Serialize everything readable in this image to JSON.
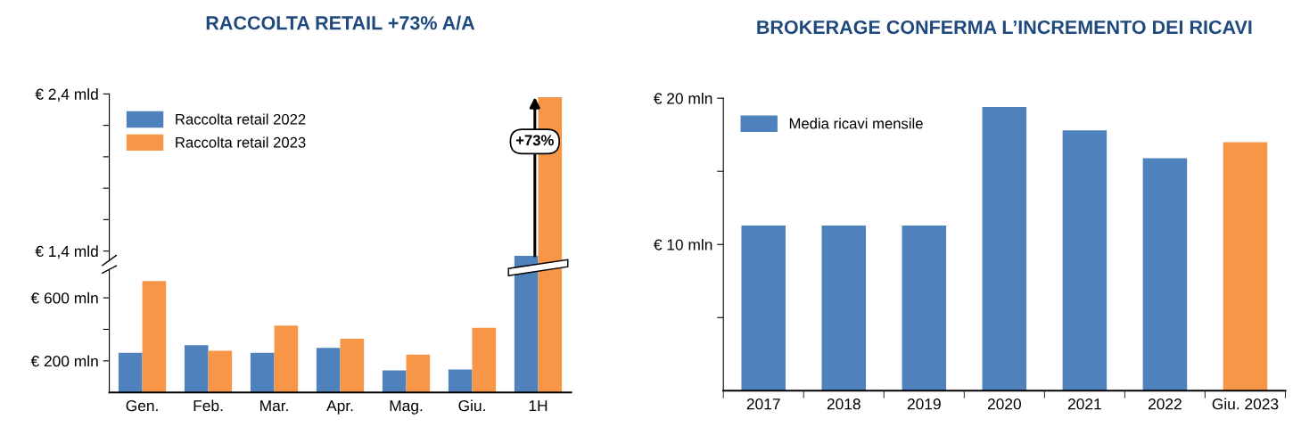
{
  "chart_data": [
    {
      "type": "bar",
      "title": "RACCOLTA RETAIL +73% A/A",
      "categories": [
        null,
        null,
        null,
        null,
        null,
        null,
        null
      ],
      "series": [
        {
          "name": "Raccolta retail 2022",
          "color": "#4f81bd",
          "values": [
            null,
            null,
            null,
            null,
            null,
            null,
            1.37
          ]
        },
        {
          "name": "Raccolta retail 2023",
          "color": "#f79646",
          "values": [
            null,
            null,
            null,
            null,
            null,
            null,
            2.38
          ]
        }
      ],
      "ylim": [
        1.34,
        2.4
      ],
      "yticks": [
        {
          "value": 1.4,
          "label": "€ 1,4 mld"
        },
        {
          "value": 1.6,
          "label": null
        },
        {
          "value": 1.8,
          "label": null
        },
        {
          "value": 2.0,
          "label": null
        },
        {
          "value": 2.2,
          "label": null
        },
        {
          "value": 2.4,
          "label": "€ 2,4 mld"
        }
      ],
      "tick_labels": "y",
      "annotations": [
        "+73%"
      ],
      "legend": "top left"
    },
    {
      "type": "bar",
      "categories": [
        "Gen.",
        "Feb.",
        "Mar.",
        "Apr.",
        "Mag.",
        "Giu.",
        "1H"
      ],
      "series": [
        {
          "color": "#4f81bd",
          "values": [
            252,
            299,
            252,
            282,
            139,
            146,
            null
          ]
        },
        {
          "color": "#f79646",
          "values": [
            706,
            264,
            424,
            341,
            240,
            409,
            null
          ]
        }
      ],
      "ylim": [
        0,
        780
      ],
      "yticks": [
        {
          "value": 200,
          "label": "€ 200 mln"
        },
        {
          "value": 400,
          "label": null
        },
        {
          "value": 600,
          "label": "€ 600 mln"
        }
      ]
    },
    {
      "type": "bar",
      "title": "BROKERAGE CONFERMA L’INCREMENTO DEI RICAVI",
      "categories": [
        "2017",
        "2018",
        "2019",
        "2020",
        "2021",
        "2022",
        "Giu. 2023"
      ],
      "series": [
        {
          "name": "Media ricavi mensile",
          "color": "#4f81bd",
          "colors": [
            "#4f81bd",
            "#4f81bd",
            "#4f81bd",
            "#4f81bd",
            "#4f81bd",
            "#4f81bd",
            "#f79646"
          ],
          "values": [
            11.3,
            11.3,
            11.3,
            19.4,
            17.8,
            15.9,
            17.0
          ]
        }
      ],
      "ylim": [
        0,
        20
      ],
      "yticks": [
        {
          "value": 5,
          "label": null
        },
        {
          "value": 10,
          "label": "€ 10 mln"
        },
        {
          "value": 15,
          "label": null
        },
        {
          "value": 20,
          "label": "€ 20 mln"
        }
      ],
      "legend": "top left"
    }
  ]
}
